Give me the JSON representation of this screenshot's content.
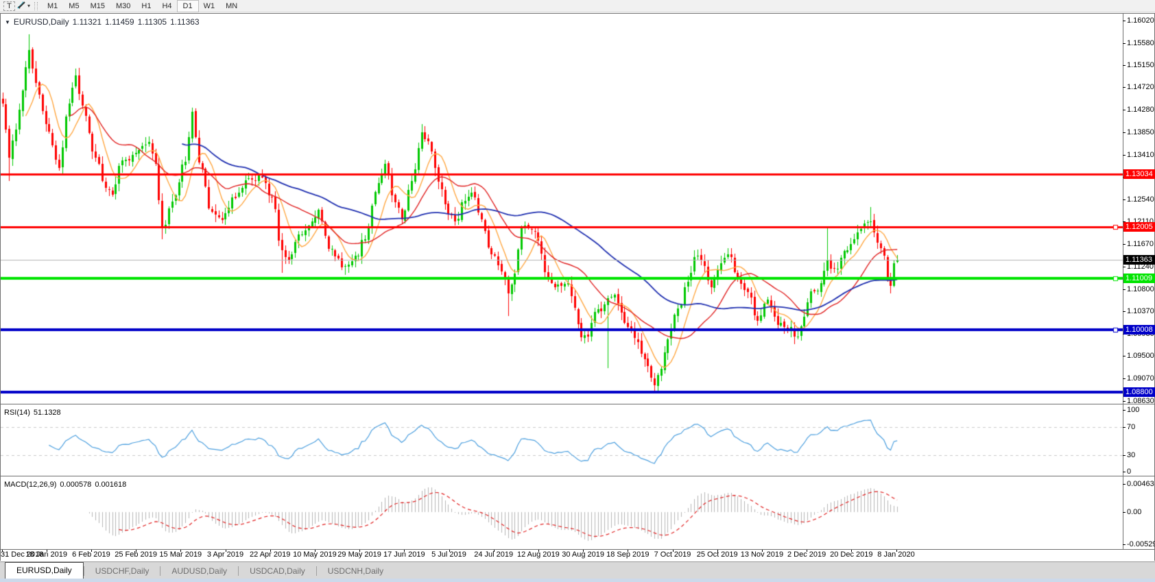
{
  "toolbar": {
    "text_tool": "T",
    "arrange_caret": "▾",
    "timeframes": [
      {
        "label": "M1"
      },
      {
        "label": "M5"
      },
      {
        "label": "M15"
      },
      {
        "label": "M30"
      },
      {
        "label": "H1"
      },
      {
        "label": "H4"
      },
      {
        "label": "D1",
        "active": true
      },
      {
        "label": "W1"
      },
      {
        "label": "MN"
      }
    ]
  },
  "window": {
    "collapse_icon": "▼",
    "title": "EURUSD,Daily",
    "ohlc": {
      "open": "1.11321",
      "high": "1.11459",
      "low": "1.11305",
      "close": "1.11363"
    }
  },
  "price_axis": {
    "ticks": [
      "1.16020",
      "1.15580",
      "1.15150",
      "1.14720",
      "1.14280",
      "1.13850",
      "1.13410",
      "1.12980",
      "1.12540",
      "1.12110",
      "1.11670",
      "1.11240",
      "1.10800",
      "1.10370",
      "1.09930",
      "1.09500",
      "1.09070",
      "1.08630"
    ]
  },
  "hlines": [
    {
      "price": 1.13034,
      "label": "1.13034",
      "color": "#ff0000",
      "width": 3,
      "handle": false
    },
    {
      "price": 1.12005,
      "label": "1.12005",
      "color": "#ff0000",
      "width": 3,
      "handle": true
    },
    {
      "price": 1.11009,
      "label": "1.11009",
      "color": "#00e400",
      "width": 4,
      "handle": true
    },
    {
      "price": 1.10008,
      "label": "1.10008",
      "color": "#0000c8",
      "width": 4,
      "handle": true
    },
    {
      "price": 1.088,
      "label": "1.08800",
      "color": "#0000c8",
      "width": 4,
      "handle": false
    }
  ],
  "current_price": {
    "value": 1.11363,
    "label": "1.11363",
    "line_color": "#b4b4b4",
    "label_bg": "#000000"
  },
  "rsi": {
    "name": "RSI(14)",
    "value": "51.1328",
    "color": "#4a9ede",
    "axis": [
      {
        "v": 100,
        "label": "100"
      },
      {
        "v": 70,
        "label": "70"
      },
      {
        "v": 30,
        "label": "30"
      },
      {
        "v": 0,
        "label": "0"
      }
    ],
    "levels": [
      70,
      30
    ],
    "period": 14
  },
  "macd": {
    "name": "MACD(12,26,9)",
    "value_main": "0.000578",
    "value_signal": "0.001618",
    "hist_color": "#b4b4b4",
    "signal_color": "#e02020",
    "axis": [
      {
        "v": 0.00463,
        "label": "0.00463"
      },
      {
        "v": 0,
        "label": "0.00"
      },
      {
        "v": -0.005299,
        "label": "-0.005299"
      }
    ],
    "fast": 12,
    "slow": 26,
    "signal": 9
  },
  "date_axis": {
    "labels": [
      "31 Dec 2018",
      "18 Jan 2019",
      "6 Feb 2019",
      "25 Feb 2019",
      "15 Mar 2019",
      "3 Apr 2019",
      "22 Apr 2019",
      "10 May 2019",
      "29 May 2019",
      "17 Jun 2019",
      "5 Jul 2019",
      "24 Jul 2019",
      "12 Aug 2019",
      "30 Aug 2019",
      "18 Sep 2019",
      "7 Oct 2019",
      "25 Oct 2019",
      "13 Nov 2019",
      "2 Dec 2019",
      "20 Dec 2019",
      "8 Jan 2020"
    ]
  },
  "tabs": [
    {
      "label": "EURUSD,Daily",
      "active": true
    },
    {
      "label": "USDCHF,Daily"
    },
    {
      "label": "AUDUSD,Daily"
    },
    {
      "label": "USDCAD,Daily"
    },
    {
      "label": "USDCNH,Daily"
    }
  ],
  "chart_data": {
    "type": "candlestick",
    "symbol": "EURUSD",
    "timeframe": "Daily",
    "n_candles": 270,
    "price_top": 1.1602,
    "up_color": "#00c800",
    "down_color": "#ff0000",
    "close_anchors": [
      [
        0,
        1.1445
      ],
      [
        2,
        1.133
      ],
      [
        4,
        1.1395
      ],
      [
        6,
        1.147
      ],
      [
        8,
        1.1545
      ],
      [
        10,
        1.148
      ],
      [
        13,
        1.14
      ],
      [
        17,
        1.132
      ],
      [
        20,
        1.144
      ],
      [
        22,
        1.149
      ],
      [
        24,
        1.1435
      ],
      [
        28,
        1.133
      ],
      [
        31,
        1.128
      ],
      [
        33,
        1.1265
      ],
      [
        36,
        1.133
      ],
      [
        40,
        1.134
      ],
      [
        44,
        1.137
      ],
      [
        46,
        1.132
      ],
      [
        48,
        1.1195
      ],
      [
        51,
        1.125
      ],
      [
        55,
        1.133
      ],
      [
        57,
        1.142
      ],
      [
        59,
        1.133
      ],
      [
        63,
        1.1225
      ],
      [
        66,
        1.1215
      ],
      [
        70,
        1.126
      ],
      [
        74,
        1.129
      ],
      [
        78,
        1.13
      ],
      [
        81,
        1.1255
      ],
      [
        84,
        1.115
      ],
      [
        86,
        1.114
      ],
      [
        89,
        1.118
      ],
      [
        92,
        1.12
      ],
      [
        95,
        1.123
      ],
      [
        98,
        1.116
      ],
      [
        101,
        1.1135
      ],
      [
        103,
        1.112
      ],
      [
        106,
        1.114
      ],
      [
        109,
        1.118
      ],
      [
        112,
        1.127
      ],
      [
        115,
        1.132
      ],
      [
        118,
        1.125
      ],
      [
        120,
        1.1215
      ],
      [
        123,
        1.129
      ],
      [
        126,
        1.138
      ],
      [
        128,
        1.1365
      ],
      [
        131,
        1.129
      ],
      [
        134,
        1.123
      ],
      [
        136,
        1.121
      ],
      [
        139,
        1.1255
      ],
      [
        141,
        1.127
      ],
      [
        144,
        1.121
      ],
      [
        147,
        1.115
      ],
      [
        150,
        1.112
      ],
      [
        152,
        1.1075
      ],
      [
        154,
        1.111
      ],
      [
        156,
        1.12
      ],
      [
        159,
        1.12
      ],
      [
        161,
        1.117
      ],
      [
        164,
        1.11
      ],
      [
        167,
        1.1085
      ],
      [
        170,
        1.109
      ],
      [
        172,
        1.104
      ],
      [
        174,
        1.099
      ],
      [
        176,
        1.0985
      ],
      [
        178,
        1.1035
      ],
      [
        180,
        1.104
      ],
      [
        182,
        1.1065
      ],
      [
        184,
        1.107
      ],
      [
        187,
        1.1015
      ],
      [
        190,
        1.099
      ],
      [
        193,
        1.094
      ],
      [
        196,
        1.0895
      ],
      [
        198,
        1.093
      ],
      [
        200,
        1.098
      ],
      [
        203,
        1.104
      ],
      [
        206,
        1.11
      ],
      [
        209,
        1.115
      ],
      [
        211,
        1.1125
      ],
      [
        213,
        1.108
      ],
      [
        216,
        1.1135
      ],
      [
        218,
        1.115
      ],
      [
        221,
        1.11
      ],
      [
        224,
        1.107
      ],
      [
        227,
        1.102
      ],
      [
        230,
        1.106
      ],
      [
        233,
        1.101
      ],
      [
        236,
        1.1005
      ],
      [
        239,
        1.0985
      ],
      [
        241,
        1.102
      ],
      [
        243,
        1.108
      ],
      [
        245,
        1.1075
      ],
      [
        248,
        1.113
      ],
      [
        250,
        1.1115
      ],
      [
        253,
        1.115
      ],
      [
        256,
        1.118
      ],
      [
        259,
        1.1205
      ],
      [
        261,
        1.1215
      ],
      [
        263,
        1.117
      ],
      [
        265,
        1.114
      ],
      [
        266,
        1.1105
      ],
      [
        267,
        1.109
      ],
      [
        268,
        1.1125
      ],
      [
        269,
        1.11363
      ]
    ],
    "spikes": [
      {
        "i": 2,
        "low": 1.129
      },
      {
        "i": 8,
        "high": 1.1575
      },
      {
        "i": 48,
        "low": 1.1177
      },
      {
        "i": 84,
        "low": 1.1111
      },
      {
        "i": 103,
        "low": 1.1107
      },
      {
        "i": 126,
        "high": 1.14
      },
      {
        "i": 152,
        "low": 1.1027
      },
      {
        "i": 182,
        "low": 1.0927
      },
      {
        "i": 196,
        "low": 1.0879
      },
      {
        "i": 248,
        "high": 1.1199
      },
      {
        "i": 261,
        "high": 1.1239
      }
    ],
    "last_candle": {
      "open": 1.11321,
      "high": 1.11459,
      "low": 1.11305,
      "close": 1.11363
    },
    "mas": [
      {
        "period": 8,
        "color": "#ffa640",
        "width": 1.4
      },
      {
        "period": 21,
        "color": "#e02020",
        "width": 1.4
      },
      {
        "period": 55,
        "color": "#2030b0",
        "width": 1.8
      }
    ]
  }
}
